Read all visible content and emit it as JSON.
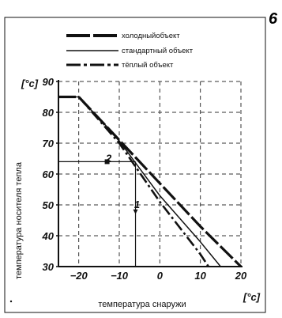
{
  "figure_number": "6",
  "chart_data": {
    "type": "line",
    "title": "",
    "xlabel": "температура снаружи",
    "ylabel": "температура носителя тепла",
    "x_unit": "[°c]",
    "y_unit": "[°c]",
    "xlim": [
      -25,
      20
    ],
    "ylim": [
      30,
      90
    ],
    "x_ticks": [
      -20,
      -10,
      0,
      10,
      20
    ],
    "y_ticks": [
      30,
      40,
      50,
      60,
      70,
      80,
      90
    ],
    "grid": true,
    "legend_position": "top",
    "series": [
      {
        "name": "холодныйобъект",
        "style": "thick-dashed",
        "points": [
          [
            -25,
            85
          ],
          [
            -21,
            85
          ],
          [
            -20,
            85
          ],
          [
            -16,
            79.4
          ],
          [
            -10,
            71
          ],
          [
            0,
            57
          ],
          [
            10,
            43
          ],
          [
            20,
            30
          ]
        ]
      },
      {
        "name": "стандартный объект",
        "style": "solid",
        "points": [
          [
            -25,
            85
          ],
          [
            -20,
            85
          ],
          [
            -11,
            72.5
          ],
          [
            0,
            53
          ],
          [
            10,
            38
          ],
          [
            15,
            30
          ]
        ]
      },
      {
        "name": "тёплый объект",
        "style": "dash-dot",
        "points": [
          [
            -25,
            85
          ],
          [
            -20,
            85
          ],
          [
            -10,
            70
          ],
          [
            0,
            51
          ],
          [
            10,
            34
          ],
          [
            12,
            30
          ]
        ]
      }
    ],
    "annotations": [
      {
        "text": "1",
        "x": -6,
        "y": 49
      },
      {
        "text": "2",
        "x": -13,
        "y": 64
      }
    ],
    "reference_lines": [
      {
        "name": "horizontal-guide",
        "from": [
          -25,
          64
        ],
        "to": [
          -6,
          64
        ]
      },
      {
        "name": "vertical-guide",
        "from": [
          -6,
          64
        ],
        "to": [
          -6,
          30
        ]
      }
    ]
  },
  "colors": {
    "ink": "#111111",
    "background": "#ffffff"
  }
}
